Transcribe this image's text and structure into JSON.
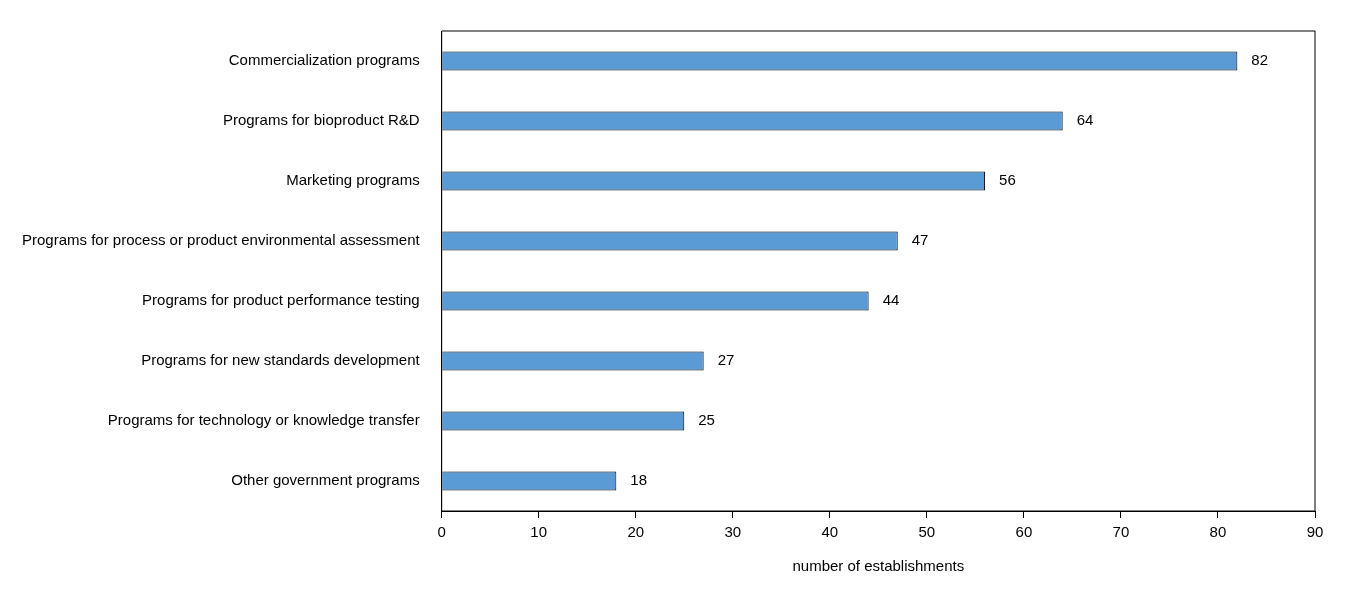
{
  "chart_data": {
    "type": "bar",
    "orientation": "horizontal",
    "xlabel": "number of establishments",
    "categories": [
      "Commercialization programs",
      "Programs for bioproduct R&D",
      "Marketing programs",
      "Programs for process or product environmental assessment",
      "Programs for product performance testing",
      "Programs for new standards development",
      "Programs for technology or knowledge transfer",
      "Other government programs"
    ],
    "values": [
      82,
      64,
      56,
      47,
      44,
      27,
      25,
      18
    ],
    "color": "#5b9bd5",
    "xlim": [
      0,
      90
    ],
    "xticks": [
      0,
      10,
      20,
      30,
      40,
      50,
      60,
      70,
      80,
      90
    ],
    "grid": false,
    "legend": false,
    "data_labels": true
  }
}
